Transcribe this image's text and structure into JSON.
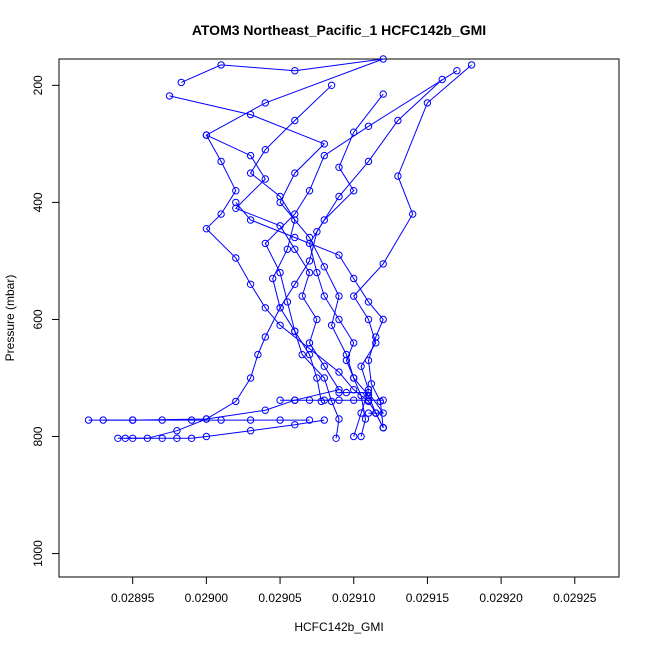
{
  "chart_data": {
    "type": "scatter",
    "title": "ATOM3 Northeast_Pacific_1 HCFC142b_GMI",
    "xlabel": "HCFC142b_GMI",
    "ylabel": "Pressure (mbar)",
    "xlim": [
      0.0289,
      0.02928
    ],
    "ylim": [
      1040,
      155
    ],
    "y_reversed": true,
    "x_ticks": [
      0.02895,
      0.029,
      0.02905,
      0.0291,
      0.02915,
      0.0292,
      0.02925
    ],
    "x_tick_labels": [
      "0.02895",
      "0.02900",
      "0.02905",
      "0.02910",
      "0.02915",
      "0.02920",
      "0.02925"
    ],
    "y_ticks": [
      200,
      400,
      600,
      800,
      1000
    ],
    "y_tick_labels": [
      "200",
      "400",
      "600",
      "800",
      "1000"
    ],
    "grid": false,
    "legend": "none",
    "color": "#0000ff",
    "series": [
      {
        "values": [
          {
            "x": 0.028983,
            "y": 195
          },
          {
            "x": 0.02901,
            "y": 165
          },
          {
            "x": 0.02906,
            "y": 175
          },
          {
            "x": 0.02912,
            "y": 155
          },
          {
            "x": 0.02904,
            "y": 230
          },
          {
            "x": 0.029,
            "y": 285
          },
          {
            "x": 0.02903,
            "y": 320
          },
          {
            "x": 0.02904,
            "y": 360
          },
          {
            "x": 0.02902,
            "y": 410
          },
          {
            "x": 0.02905,
            "y": 440
          },
          {
            "x": 0.02906,
            "y": 480
          },
          {
            "x": 0.02907,
            "y": 520
          },
          {
            "x": 0.029065,
            "y": 560
          },
          {
            "x": 0.029075,
            "y": 600
          },
          {
            "x": 0.02907,
            "y": 640
          },
          {
            "x": 0.02908,
            "y": 680
          },
          {
            "x": 0.02909,
            "y": 720
          },
          {
            "x": 0.02906,
            "y": 738
          },
          {
            "x": 0.02904,
            "y": 755
          },
          {
            "x": 0.029,
            "y": 770
          },
          {
            "x": 0.02895,
            "y": 772
          },
          {
            "x": 0.02892,
            "y": 772
          }
        ]
      },
      {
        "values": [
          {
            "x": 0.028975,
            "y": 218
          },
          {
            "x": 0.02903,
            "y": 250
          },
          {
            "x": 0.02908,
            "y": 300
          },
          {
            "x": 0.02906,
            "y": 350
          },
          {
            "x": 0.02905,
            "y": 400
          },
          {
            "x": 0.02907,
            "y": 460
          },
          {
            "x": 0.02908,
            "y": 510
          },
          {
            "x": 0.02909,
            "y": 560
          },
          {
            "x": 0.029085,
            "y": 610
          },
          {
            "x": 0.029095,
            "y": 660
          },
          {
            "x": 0.0291,
            "y": 700
          },
          {
            "x": 0.02911,
            "y": 730
          },
          {
            "x": 0.029115,
            "y": 760
          },
          {
            "x": 0.02912,
            "y": 785
          }
        ]
      },
      {
        "values": [
          {
            "x": 0.02918,
            "y": 165
          },
          {
            "x": 0.02915,
            "y": 230
          },
          {
            "x": 0.02913,
            "y": 355
          },
          {
            "x": 0.02914,
            "y": 420
          },
          {
            "x": 0.02912,
            "y": 505
          },
          {
            "x": 0.0291,
            "y": 560
          },
          {
            "x": 0.02911,
            "y": 600
          },
          {
            "x": 0.029115,
            "y": 640
          },
          {
            "x": 0.029105,
            "y": 680
          },
          {
            "x": 0.02911,
            "y": 720
          },
          {
            "x": 0.029105,
            "y": 760
          },
          {
            "x": 0.0291,
            "y": 800
          }
        ]
      },
      {
        "values": [
          {
            "x": 0.02917,
            "y": 175
          },
          {
            "x": 0.02911,
            "y": 270
          },
          {
            "x": 0.02908,
            "y": 320
          },
          {
            "x": 0.02907,
            "y": 380
          },
          {
            "x": 0.02906,
            "y": 420
          },
          {
            "x": 0.02904,
            "y": 470
          },
          {
            "x": 0.02905,
            "y": 520
          },
          {
            "x": 0.029055,
            "y": 570
          },
          {
            "x": 0.02906,
            "y": 620
          },
          {
            "x": 0.029065,
            "y": 660
          },
          {
            "x": 0.02908,
            "y": 700
          },
          {
            "x": 0.029085,
            "y": 740
          },
          {
            "x": 0.02909,
            "y": 770
          },
          {
            "x": 0.029088,
            "y": 803
          }
        ]
      },
      {
        "values": [
          {
            "x": 0.02916,
            "y": 190
          },
          {
            "x": 0.02913,
            "y": 260
          },
          {
            "x": 0.02911,
            "y": 330
          },
          {
            "x": 0.02909,
            "y": 390
          },
          {
            "x": 0.029075,
            "y": 450
          },
          {
            "x": 0.02907,
            "y": 500
          },
          {
            "x": 0.02906,
            "y": 540
          },
          {
            "x": 0.02905,
            "y": 580
          },
          {
            "x": 0.02904,
            "y": 630
          },
          {
            "x": 0.029035,
            "y": 660
          },
          {
            "x": 0.02903,
            "y": 700
          },
          {
            "x": 0.02902,
            "y": 740
          },
          {
            "x": 0.029,
            "y": 770
          },
          {
            "x": 0.02898,
            "y": 790
          },
          {
            "x": 0.02896,
            "y": 803
          },
          {
            "x": 0.028945,
            "y": 803
          }
        ]
      },
      {
        "values": [
          {
            "x": 0.029,
            "y": 285
          },
          {
            "x": 0.02901,
            "y": 330
          },
          {
            "x": 0.02902,
            "y": 380
          },
          {
            "x": 0.02901,
            "y": 420
          },
          {
            "x": 0.029,
            "y": 445
          },
          {
            "x": 0.02902,
            "y": 495
          },
          {
            "x": 0.02903,
            "y": 540
          },
          {
            "x": 0.02904,
            "y": 580
          },
          {
            "x": 0.02905,
            "y": 610
          },
          {
            "x": 0.02907,
            "y": 650
          },
          {
            "x": 0.02909,
            "y": 690
          },
          {
            "x": 0.0291,
            "y": 720
          },
          {
            "x": 0.02911,
            "y": 740
          },
          {
            "x": 0.029115,
            "y": 760
          },
          {
            "x": 0.02912,
            "y": 785
          }
        ]
      },
      {
        "values": [
          {
            "x": 0.02912,
            "y": 215
          },
          {
            "x": 0.0291,
            "y": 280
          },
          {
            "x": 0.02909,
            "y": 340
          },
          {
            "x": 0.0291,
            "y": 380
          },
          {
            "x": 0.02908,
            "y": 430
          },
          {
            "x": 0.02907,
            "y": 470
          },
          {
            "x": 0.029075,
            "y": 520
          },
          {
            "x": 0.02908,
            "y": 560
          },
          {
            "x": 0.02909,
            "y": 600
          },
          {
            "x": 0.0291,
            "y": 640
          },
          {
            "x": 0.029095,
            "y": 670
          },
          {
            "x": 0.0291,
            "y": 700
          },
          {
            "x": 0.029105,
            "y": 730
          },
          {
            "x": 0.029108,
            "y": 770
          },
          {
            "x": 0.029105,
            "y": 800
          }
        ]
      },
      {
        "values": [
          {
            "x": 0.02905,
            "y": 738
          },
          {
            "x": 0.02906,
            "y": 738
          },
          {
            "x": 0.02907,
            "y": 738
          },
          {
            "x": 0.02908,
            "y": 738
          },
          {
            "x": 0.02909,
            "y": 738
          },
          {
            "x": 0.0291,
            "y": 738
          },
          {
            "x": 0.02911,
            "y": 738
          },
          {
            "x": 0.02912,
            "y": 738
          }
        ]
      },
      {
        "values": [
          {
            "x": 0.02911,
            "y": 760
          },
          {
            "x": 0.029115,
            "y": 760
          },
          {
            "x": 0.02912,
            "y": 760
          },
          {
            "x": 0.02911,
            "y": 725
          },
          {
            "x": 0.029095,
            "y": 725
          },
          {
            "x": 0.02909,
            "y": 725
          }
        ]
      },
      {
        "values": [
          {
            "x": 0.02894,
            "y": 803
          },
          {
            "x": 0.02895,
            "y": 803
          },
          {
            "x": 0.02897,
            "y": 803
          },
          {
            "x": 0.02898,
            "y": 803
          },
          {
            "x": 0.02899,
            "y": 803
          },
          {
            "x": 0.029,
            "y": 800
          },
          {
            "x": 0.02903,
            "y": 790
          },
          {
            "x": 0.02906,
            "y": 780
          },
          {
            "x": 0.02908,
            "y": 772
          }
        ]
      },
      {
        "values": [
          {
            "x": 0.02893,
            "y": 772
          },
          {
            "x": 0.02895,
            "y": 772
          },
          {
            "x": 0.02897,
            "y": 772
          },
          {
            "x": 0.02899,
            "y": 772
          },
          {
            "x": 0.02901,
            "y": 772
          },
          {
            "x": 0.02903,
            "y": 772
          },
          {
            "x": 0.02905,
            "y": 772
          },
          {
            "x": 0.02907,
            "y": 772
          }
        ]
      },
      {
        "values": [
          {
            "x": 0.02902,
            "y": 400
          },
          {
            "x": 0.02903,
            "y": 430
          },
          {
            "x": 0.02906,
            "y": 460
          },
          {
            "x": 0.02909,
            "y": 490
          },
          {
            "x": 0.0291,
            "y": 530
          },
          {
            "x": 0.02911,
            "y": 570
          },
          {
            "x": 0.02912,
            "y": 600
          },
          {
            "x": 0.029115,
            "y": 630
          },
          {
            "x": 0.02911,
            "y": 670
          },
          {
            "x": 0.029112,
            "y": 710
          },
          {
            "x": 0.029118,
            "y": 740
          },
          {
            "x": 0.02912,
            "y": 785
          }
        ]
      },
      {
        "values": [
          {
            "x": 0.029085,
            "y": 200
          },
          {
            "x": 0.02906,
            "y": 260
          },
          {
            "x": 0.02904,
            "y": 310
          },
          {
            "x": 0.02903,
            "y": 350
          },
          {
            "x": 0.02905,
            "y": 390
          },
          {
            "x": 0.02906,
            "y": 430
          },
          {
            "x": 0.029055,
            "y": 480
          },
          {
            "x": 0.029045,
            "y": 530
          },
          {
            "x": 0.02905,
            "y": 580
          },
          {
            "x": 0.02906,
            "y": 620
          },
          {
            "x": 0.02907,
            "y": 660
          },
          {
            "x": 0.029075,
            "y": 700
          },
          {
            "x": 0.029078,
            "y": 740
          }
        ]
      }
    ]
  }
}
